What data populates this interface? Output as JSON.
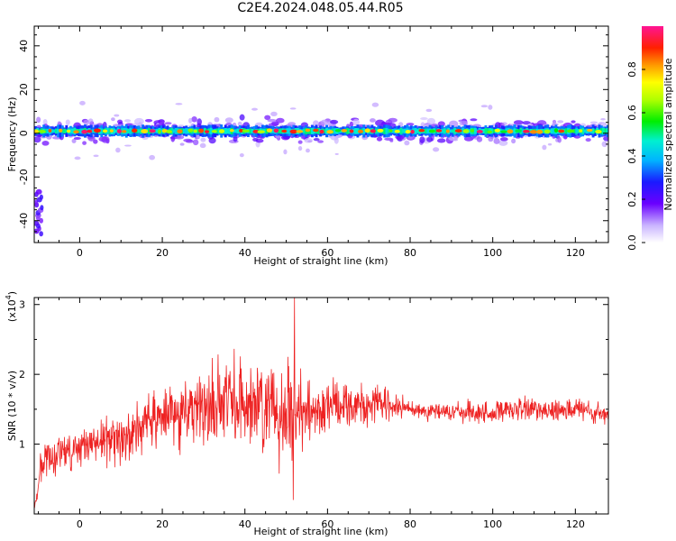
{
  "title": "C2E4.2024.048.05.44.R05",
  "colors": {
    "snr_line": "#ee2222",
    "frame": "#000000"
  },
  "chart_data": [
    {
      "type": "heatmap",
      "xlabel": "Height of straight line (km)",
      "ylabel": "Frequency (Hz)",
      "xlim": [
        -11,
        128
      ],
      "ylim": [
        -50,
        49
      ],
      "xticks": [
        0,
        20,
        40,
        60,
        80,
        100,
        120
      ],
      "yticks": [
        -40,
        -20,
        0,
        20,
        40
      ],
      "colorbar": {
        "label": "Normalized spectral amplitude",
        "range": [
          0,
          1
        ],
        "ticks": [
          0.0,
          0.2,
          0.4,
          0.6,
          0.8
        ],
        "tick_labels": [
          "0.0",
          "0.2",
          "0.4",
          "0.6",
          "0.8"
        ]
      },
      "band": {
        "center_freq_hz": 1,
        "core_halfwidth_hz": 2,
        "halo_halfwidth_hz": 5,
        "max_extent_hz": 13,
        "strong_segments_km": [
          [
            -11,
            73
          ],
          [
            74,
            128
          ]
        ]
      },
      "low_frequency_patch": {
        "x_km": [
          -11,
          -9
        ],
        "freq_hz": [
          -46,
          -26
        ]
      }
    },
    {
      "type": "line",
      "xlabel": "Height of straight line (km)",
      "ylabel": "SNR (10 * v/v)",
      "y_multiplier_label": "(x10",
      "y_multiplier_exponent": "4",
      "xlim": [
        -11,
        128
      ],
      "ylim": [
        0,
        3.1
      ],
      "xticks": [
        0,
        20,
        40,
        60,
        80,
        100,
        120
      ],
      "yticks": [
        1,
        2,
        3
      ],
      "envelope": {
        "x": [
          -11,
          -9,
          0,
          10,
          20,
          30,
          40,
          45,
          50,
          53,
          57,
          62,
          70,
          75,
          80,
          90,
          100,
          110,
          120,
          128
        ],
        "mean": [
          0.05,
          0.8,
          0.95,
          1.1,
          1.4,
          1.55,
          1.6,
          1.55,
          1.5,
          1.5,
          1.45,
          1.6,
          1.55,
          1.55,
          1.5,
          1.45,
          1.45,
          1.5,
          1.5,
          1.4
        ],
        "spread": [
          0.05,
          0.25,
          0.3,
          0.35,
          0.45,
          0.55,
          0.65,
          0.7,
          0.75,
          0.6,
          0.45,
          0.35,
          0.3,
          0.25,
          0.1,
          0.15,
          0.18,
          0.18,
          0.18,
          0.15
        ]
      },
      "peak": {
        "x": 52,
        "y": 3.1
      },
      "trough": {
        "x": 51.7,
        "y": 0.2
      }
    }
  ]
}
